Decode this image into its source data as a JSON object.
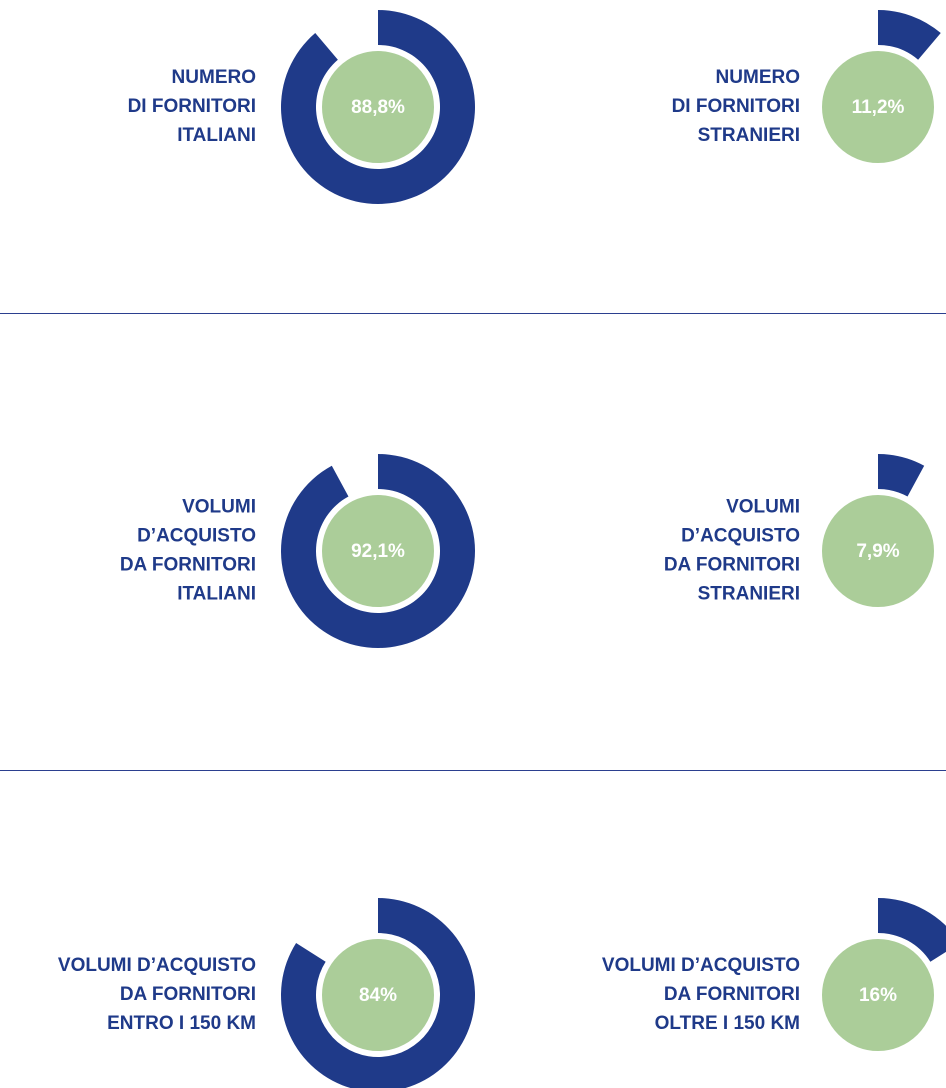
{
  "chart_data": [
    {
      "type": "donut",
      "title": [
        "NUMERO",
        "DI FORNITORI",
        "ITALIANI"
      ],
      "value": 88.8,
      "value_label": "88,8%",
      "color": "#1f3a89",
      "center_color": "#abcd99"
    },
    {
      "type": "donut",
      "title": [
        "NUMERO",
        "DI FORNITORI",
        "STRANIERI"
      ],
      "value": 11.2,
      "value_label": "11,2%",
      "color": "#1f3a89",
      "center_color": "#abcd99"
    },
    {
      "type": "donut",
      "title": [
        "VOLUMI",
        "D’ACQUISTO",
        "DA FORNITORI",
        "ITALIANI"
      ],
      "value": 92.1,
      "value_label": "92,1%",
      "color": "#1f3a89",
      "center_color": "#abcd99"
    },
    {
      "type": "donut",
      "title": [
        "VOLUMI",
        "D’ACQUISTO",
        "DA FORNITORI",
        "STRANIERI"
      ],
      "value": 7.9,
      "value_label": "7,9%",
      "color": "#1f3a89",
      "center_color": "#abcd99"
    },
    {
      "type": "donut",
      "title": [
        "VOLUMI D’ACQUISTO",
        "DA FORNITORI",
        "ENTRO I 150 KM"
      ],
      "value": 84,
      "value_label": "84%",
      "color": "#1f3a89",
      "center_color": "#abcd99"
    },
    {
      "type": "donut",
      "title": [
        "VOLUMI D’ACQUISTO",
        "DA FORNITORI",
        "OLTRE I 150 KM"
      ],
      "value": 16,
      "value_label": "16%",
      "color": "#1f3a89",
      "center_color": "#abcd99"
    }
  ]
}
